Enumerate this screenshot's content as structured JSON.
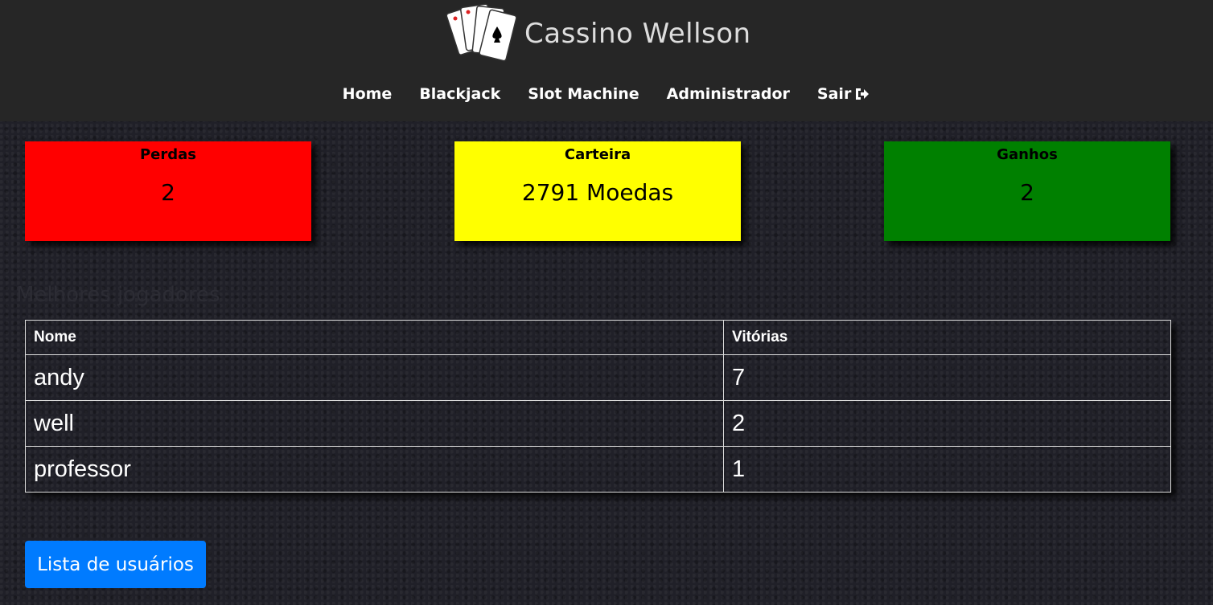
{
  "header": {
    "brand": "Cassino Wellson",
    "nav": [
      "Home",
      "Blackjack",
      "Slot Machine",
      "Administrador",
      "Sair"
    ]
  },
  "stats": [
    {
      "label": "Perdas",
      "value": "2"
    },
    {
      "label": "Carteira",
      "value": "2791 Moedas"
    },
    {
      "label": "Ganhos",
      "value": "2"
    }
  ],
  "ranking": {
    "title": "Melhores jogadores",
    "table": {
      "columns": [
        "Nome",
        "Vitórias"
      ],
      "rows": [
        [
          "andy",
          "7"
        ],
        [
          "well",
          "2"
        ],
        [
          "professor",
          "1"
        ]
      ]
    }
  },
  "button": "Lista de usuários"
}
